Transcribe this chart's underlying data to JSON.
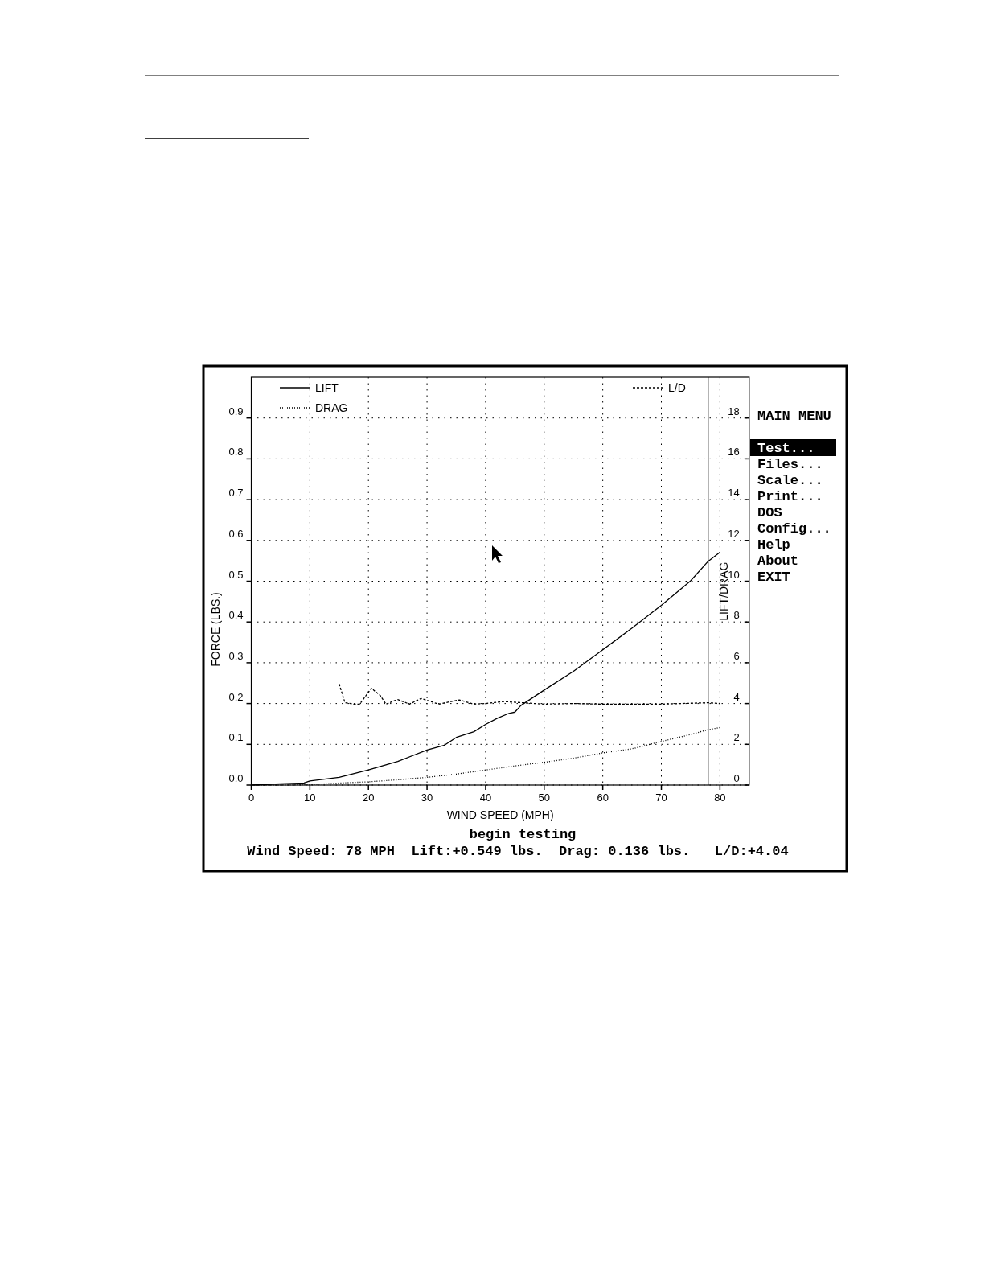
{
  "chart_data": {
    "type": "line",
    "xlabel": "WIND SPEED (MPH)",
    "ylabel": "FORCE (LBS.)",
    "y2label": "LIFT/DRAG",
    "xlim": [
      0,
      85
    ],
    "xticks": [
      0,
      10,
      20,
      30,
      40,
      50,
      60,
      70,
      80
    ],
    "ylim": [
      0,
      1.0
    ],
    "yticks": [
      {
        "value": 0,
        "label": "0.0"
      },
      0.1,
      0.2,
      0.3,
      0.4,
      0.5,
      0.6,
      0.7,
      0.8,
      0.9
    ],
    "y2lim": [
      0,
      20
    ],
    "y2ticks": [
      0,
      2,
      4,
      6,
      8,
      10,
      12,
      14,
      16,
      18
    ],
    "grid": true,
    "legend": "top",
    "ref_lines": [
      {
        "axis": "x",
        "value": 78,
        "color": "#000000",
        "line_style": "solid"
      }
    ],
    "series": [
      {
        "name": "LIFT",
        "color": "#000000",
        "line_style": "solid",
        "x": [
          0,
          5,
          9,
          10,
          15,
          20,
          25,
          30,
          33,
          35,
          38,
          40,
          42,
          44,
          45,
          46,
          50,
          55,
          60,
          65,
          70,
          75,
          78,
          80
        ],
        "values": [
          0.0,
          0.003,
          0.005,
          0.01,
          0.019,
          0.037,
          0.058,
          0.086,
          0.098,
          0.117,
          0.131,
          0.149,
          0.164,
          0.176,
          0.179,
          0.195,
          0.233,
          0.279,
          0.332,
          0.385,
          0.441,
          0.501,
          0.549,
          0.571
        ]
      },
      {
        "name": "DRAG",
        "color": "#000000",
        "line_style": "dotted",
        "x": [
          0,
          5,
          10,
          15,
          20,
          25,
          30,
          35,
          40,
          45,
          50,
          55,
          60,
          65,
          70,
          75,
          78,
          80
        ],
        "values": [
          0.0,
          0.0,
          0.001,
          0.005,
          0.008,
          0.013,
          0.019,
          0.027,
          0.037,
          0.047,
          0.056,
          0.066,
          0.079,
          0.089,
          0.107,
          0.124,
          0.136,
          0.141
        ]
      },
      {
        "name": "L/D",
        "color": "#000000",
        "line_style": "dashed",
        "axis": "y2",
        "x": [
          15,
          16,
          17.5,
          18.5,
          20.5,
          22,
          23,
          25,
          27,
          29,
          32,
          35.5,
          38,
          40,
          43,
          50,
          55,
          60,
          70,
          78,
          80
        ],
        "values": [
          4.96,
          4.04,
          3.97,
          3.97,
          4.75,
          4.4,
          3.97,
          4.2,
          3.97,
          4.25,
          3.97,
          4.18,
          3.97,
          4.0,
          4.1,
          3.97,
          4.0,
          3.97,
          3.97,
          4.04,
          4.0
        ]
      }
    ],
    "annotations": [
      "MAIN MENU",
      "Test...",
      "Files...",
      "Scale...",
      "Print...",
      "DOS",
      "Config...",
      "Help",
      "About",
      "EXIT",
      "begin testing",
      "Wind Speed: 78 MPH  Lift:+0.549 lbs.  Drag: 0.136 lbs.   L/D:+4.04"
    ]
  }
}
